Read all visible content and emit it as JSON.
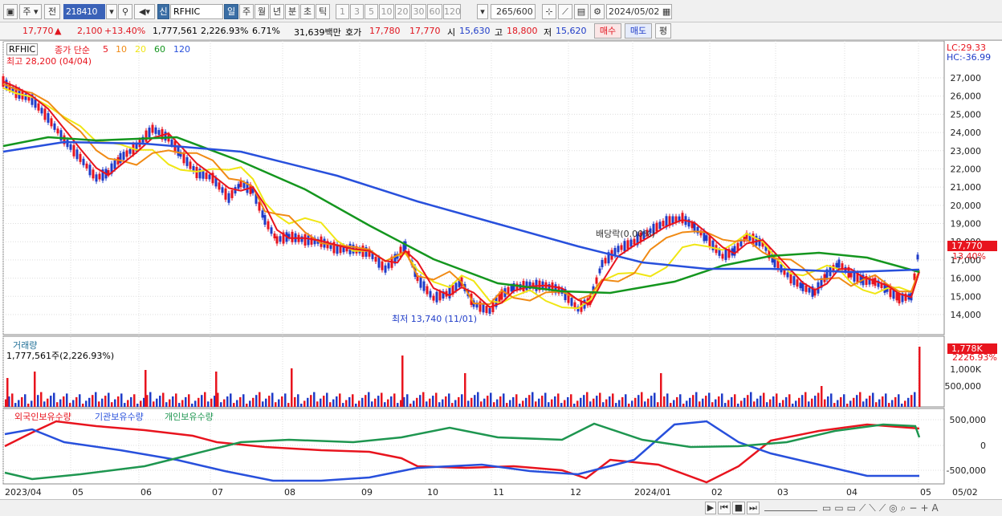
{
  "toolbar": {
    "period_label": "주",
    "prefix_label": "전",
    "code": "218410",
    "badge": "신",
    "name": "RFHIC",
    "timeframes": [
      "일",
      "주",
      "월",
      "년",
      "분",
      "초",
      "틱"
    ],
    "minutes": [
      "1",
      "3",
      "5",
      "10",
      "20",
      "30",
      "60",
      "120"
    ],
    "count": "265",
    "count_total": "/600",
    "date": "2024/05/02"
  },
  "quote": {
    "price": "17,770",
    "arrow": "▲",
    "change": "2,100",
    "change_pct": "+13.40%",
    "volume": "1,777,561",
    "volume_ratio": "2,226.93%",
    "turnover": "6.71%",
    "amount": "31,639백만",
    "hoga_label": "호가",
    "ask": "17,780",
    "bid": "17,770",
    "open_label": "시",
    "open": "15,630",
    "high_label": "고",
    "high": "18,800",
    "low_label": "저",
    "low": "15,620",
    "buy_label": "매수",
    "sell_label": "매도",
    "eval_label": "평"
  },
  "price_panel": {
    "ticker": "RFHIC",
    "ma_title": "종가 단순",
    "ma_periods": [
      "5",
      "10",
      "20",
      "60",
      "120"
    ],
    "ma_colors": [
      "#e8141e",
      "#f08a14",
      "#f0e614",
      "#14961e",
      "#2850dc"
    ],
    "high_label": "최고 28,200 (04/04)",
    "low_label": "최저 13,740 (11/01)",
    "dividend_label": "배당락(0.00%)",
    "lc": "LC:29.33",
    "hc": "HC:-36.99",
    "last_price": "17,770",
    "last_pct": "13.40%",
    "y_ticks": [
      "27,000",
      "26,000",
      "25,000",
      "24,000",
      "23,000",
      "22,000",
      "21,000",
      "20,000",
      "19,000",
      "18,000",
      "17,000",
      "16,000",
      "15,000",
      "14,000"
    ]
  },
  "volume_panel": {
    "title": "거래량",
    "value": "1,777,561주(2,226.93%)",
    "last": "1,778K",
    "last_pct": "2226.93%",
    "y_ticks": [
      "1,000K",
      "500,000"
    ]
  },
  "holdings_panel": {
    "series": [
      {
        "name": "외국인보유수량",
        "color": "#e8141e"
      },
      {
        "name": "기관보유수량",
        "color": "#2850dc"
      },
      {
        "name": "개인보유수량",
        "color": "#1e9650"
      }
    ],
    "y_ticks": [
      "500,000",
      "0",
      "-500,000"
    ]
  },
  "x_axis": [
    "2023/04",
    "05",
    "06",
    "07",
    "08",
    "09",
    "10",
    "11",
    "12",
    "2024/01",
    "02",
    "03",
    "04",
    "05"
  ],
  "x_axis_right": "05/02"
}
